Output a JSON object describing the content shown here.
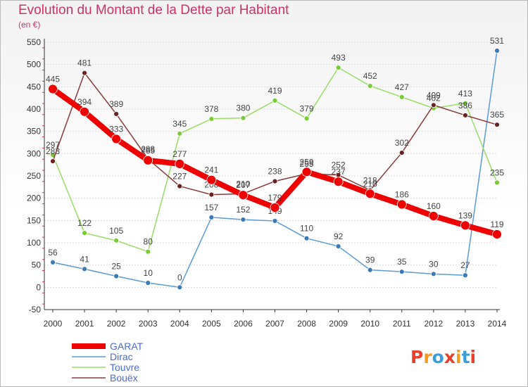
{
  "header": {
    "title": "Evolution du Montant de la Dette par Habitant",
    "subtitle": "(en €)"
  },
  "logo": {
    "text": "Proxiti",
    "colors": [
      "#e8402b",
      "#f39a1f",
      "#3aa0d8",
      "#e8402b",
      "#f39a1f",
      "#3aa0d8",
      "#e8402b"
    ]
  },
  "chart_data": {
    "type": "line",
    "x": [
      "2000",
      "2001",
      "2002",
      "2003",
      "2004",
      "2005",
      "2006",
      "2007",
      "2008",
      "2009",
      "2010",
      "2011",
      "2012",
      "2013",
      "2014"
    ],
    "ylim": [
      -50,
      550
    ],
    "yticks": [
      -50,
      0,
      50,
      100,
      150,
      200,
      250,
      300,
      350,
      400,
      450,
      500,
      550
    ],
    "grid": true,
    "legend": "bottom-left",
    "series": [
      {
        "name": "Dirac",
        "color": "#5b9bd5",
        "point": "#3a7ab8",
        "width": 1.5,
        "dot": 3.5,
        "values": [
          56,
          41,
          25,
          10,
          0,
          157,
          152,
          149,
          110,
          92,
          39,
          35,
          30,
          27,
          531
        ]
      },
      {
        "name": "Touvre",
        "color": "#99dd66",
        "point": "#77cc33",
        "width": 1.5,
        "dot": 3.5,
        "values": [
          297,
          122,
          105,
          80,
          345,
          378,
          380,
          419,
          379,
          493,
          452,
          427,
          402,
          413,
          235
        ]
      },
      {
        "name": "Bouëx",
        "color": "#8b3a3a",
        "point": "#6b2222",
        "width": 1.5,
        "dot": 3.5,
        "values": [
          283,
          481,
          389,
          288,
          227,
          208,
          210,
          238,
          255,
          252,
          218,
          302,
          409,
          386,
          365
        ]
      },
      {
        "name": "GARAT",
        "color": "#ee0000",
        "point": "#ee0000",
        "width": 8,
        "dot": 6.5,
        "values": [
          445,
          394,
          333,
          285,
          277,
          241,
          207,
          179,
          259,
          237,
          210,
          186,
          160,
          139,
          119
        ]
      }
    ],
    "legend_order": [
      "GARAT",
      "Dirac",
      "Touvre",
      "Bouëx"
    ]
  }
}
